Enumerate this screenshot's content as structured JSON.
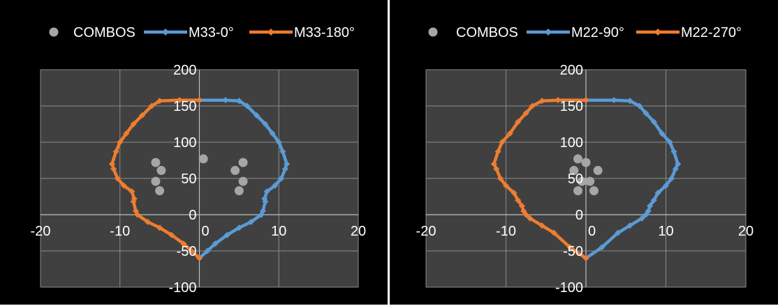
{
  "colors": {
    "background": "#000000",
    "plot_area": "#404040",
    "grid": "#8c8c8c",
    "combos": "#a6a6a6",
    "blue": "#5b9bd5",
    "orange": "#ed7d31",
    "text": "#ffffff"
  },
  "chart_data": [
    {
      "type": "scatter",
      "title": "",
      "xlabel": "",
      "ylabel": "",
      "xlim": [
        -20,
        20
      ],
      "ylim": [
        -100,
        200
      ],
      "xticks": [
        -20,
        -10,
        0,
        10,
        20
      ],
      "yticks": [
        -100,
        -50,
        0,
        50,
        100,
        150,
        200
      ],
      "grid": true,
      "legend_position": "top",
      "series": [
        {
          "name": "COMBOS",
          "kind": "scatter",
          "color": "#a6a6a6",
          "points": [
            [
              0.5,
              77
            ],
            [
              5.5,
              72
            ],
            [
              4.5,
              61
            ],
            [
              5.5,
              46
            ],
            [
              5,
              33
            ],
            [
              -5.5,
              72
            ],
            [
              -4.8,
              61
            ],
            [
              -5.5,
              46
            ],
            [
              -5,
              33
            ]
          ]
        },
        {
          "name": "M33-0°",
          "kind": "line",
          "color": "#5b9bd5",
          "points": [
            [
              0,
              158
            ],
            [
              3.3,
              158
            ],
            [
              5,
              157
            ],
            [
              6,
              150
            ],
            [
              7.2,
              137
            ],
            [
              8.3,
              125
            ],
            [
              9.2,
              112
            ],
            [
              10,
              100
            ],
            [
              10.5,
              87
            ],
            [
              11,
              70
            ],
            [
              10.8,
              63
            ],
            [
              10.3,
              50
            ],
            [
              9.5,
              40
            ],
            [
              8.5,
              32
            ],
            [
              8.2,
              22
            ],
            [
              8.3,
              18
            ],
            [
              8,
              5
            ],
            [
              7.8,
              0
            ],
            [
              6.5,
              -10
            ],
            [
              5,
              -18
            ],
            [
              3.5,
              -28
            ],
            [
              2,
              -40
            ],
            [
              1,
              -50
            ],
            [
              0,
              -60
            ]
          ]
        },
        {
          "name": "M33-180°",
          "kind": "line",
          "color": "#ed7d31",
          "points": [
            [
              0,
              158
            ],
            [
              -2.5,
              158
            ],
            [
              -5,
              157
            ],
            [
              -6,
              150
            ],
            [
              -7.2,
              137
            ],
            [
              -8.3,
              125
            ],
            [
              -9.2,
              112
            ],
            [
              -10,
              100
            ],
            [
              -10.5,
              87
            ],
            [
              -11,
              70
            ],
            [
              -10.8,
              63
            ],
            [
              -10.3,
              50
            ],
            [
              -9.5,
              40
            ],
            [
              -8.5,
              32
            ],
            [
              -8.2,
              22
            ],
            [
              -8.3,
              18
            ],
            [
              -8,
              5
            ],
            [
              -7.8,
              0
            ],
            [
              -6.5,
              -10
            ],
            [
              -5,
              -18
            ],
            [
              -3.5,
              -28
            ],
            [
              -2,
              -40
            ],
            [
              -1,
              -50
            ],
            [
              0,
              -60
            ]
          ]
        }
      ]
    },
    {
      "type": "scatter",
      "title": "",
      "xlabel": "",
      "ylabel": "",
      "xlim": [
        -20,
        20
      ],
      "ylim": [
        -100,
        200
      ],
      "xticks": [
        -20,
        -10,
        0,
        10,
        20
      ],
      "yticks": [
        -100,
        -50,
        0,
        50,
        100,
        150,
        200
      ],
      "grid": true,
      "legend_position": "top",
      "series": [
        {
          "name": "COMBOS",
          "kind": "scatter",
          "color": "#a6a6a6",
          "points": [
            [
              -1,
              77
            ],
            [
              0,
              72
            ],
            [
              -1.5,
              61
            ],
            [
              1.5,
              61
            ],
            [
              -0.5,
              46
            ],
            [
              0.5,
              46
            ],
            [
              -1,
              33
            ],
            [
              1,
              33
            ]
          ]
        },
        {
          "name": "M22-90°",
          "kind": "line",
          "color": "#5b9bd5",
          "points": [
            [
              0,
              158
            ],
            [
              3.5,
              158
            ],
            [
              5.5,
              157
            ],
            [
              6.7,
              150
            ],
            [
              7.5,
              140
            ],
            [
              8.5,
              128
            ],
            [
              9.5,
              112
            ],
            [
              10.5,
              100
            ],
            [
              11,
              87
            ],
            [
              11.5,
              70
            ],
            [
              11.2,
              63
            ],
            [
              10.7,
              50
            ],
            [
              10,
              40
            ],
            [
              9,
              30
            ],
            [
              8.5,
              20
            ],
            [
              8,
              12
            ],
            [
              7.8,
              5
            ],
            [
              7.5,
              0
            ],
            [
              7,
              -5
            ],
            [
              5.5,
              -15
            ],
            [
              4,
              -25
            ],
            [
              2,
              -45
            ],
            [
              0,
              -60
            ]
          ]
        },
        {
          "name": "M22-270°",
          "kind": "line",
          "color": "#ed7d31",
          "points": [
            [
              0,
              158
            ],
            [
              -3.5,
              158
            ],
            [
              -5.5,
              157
            ],
            [
              -6.7,
              150
            ],
            [
              -7.5,
              140
            ],
            [
              -8.5,
              128
            ],
            [
              -9.5,
              112
            ],
            [
              -10.5,
              100
            ],
            [
              -11,
              87
            ],
            [
              -11.5,
              70
            ],
            [
              -11.2,
              63
            ],
            [
              -10.7,
              50
            ],
            [
              -10,
              40
            ],
            [
              -9,
              30
            ],
            [
              -8.5,
              20
            ],
            [
              -8,
              12
            ],
            [
              -7.8,
              5
            ],
            [
              -7.5,
              0
            ],
            [
              -7,
              -5
            ],
            [
              -5.5,
              -15
            ],
            [
              -4,
              -25
            ],
            [
              -2,
              -45
            ],
            [
              0,
              -60
            ]
          ]
        }
      ]
    }
  ]
}
